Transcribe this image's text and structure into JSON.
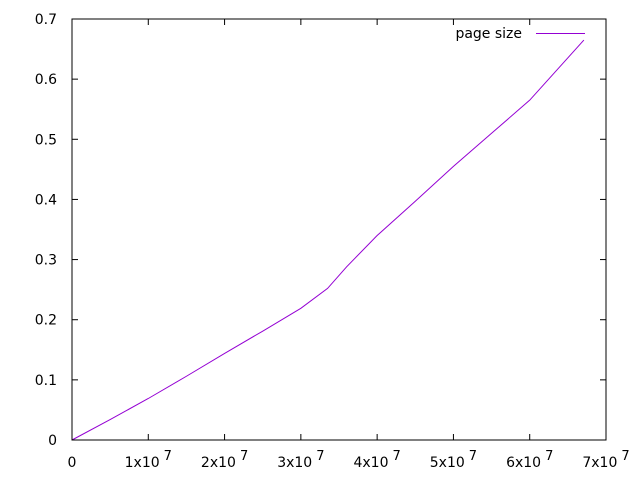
{
  "chart_data": {
    "type": "line",
    "title": "",
    "xlabel": "",
    "ylabel": "",
    "xlim": [
      0,
      70000000
    ],
    "ylim": [
      0,
      0.7
    ],
    "grid": false,
    "legend_position": "top-right",
    "x_ticks": [
      {
        "value": 0,
        "mant": "0",
        "exp": ""
      },
      {
        "value": 10000000,
        "mant": "1x10",
        "exp": "7"
      },
      {
        "value": 20000000,
        "mant": "2x10",
        "exp": "7"
      },
      {
        "value": 30000000,
        "mant": "3x10",
        "exp": "7"
      },
      {
        "value": 40000000,
        "mant": "4x10",
        "exp": "7"
      },
      {
        "value": 50000000,
        "mant": "5x10",
        "exp": "7"
      },
      {
        "value": 60000000,
        "mant": "6x10",
        "exp": "7"
      },
      {
        "value": 70000000,
        "mant": "7x10",
        "exp": "7"
      }
    ],
    "y_ticks": [
      {
        "value": 0,
        "label": "0"
      },
      {
        "value": 0.1,
        "label": "0.1"
      },
      {
        "value": 0.2,
        "label": "0.2"
      },
      {
        "value": 0.3,
        "label": "0.3"
      },
      {
        "value": 0.4,
        "label": "0.4"
      },
      {
        "value": 0.5,
        "label": "0.5"
      },
      {
        "value": 0.6,
        "label": "0.6"
      },
      {
        "value": 0.7,
        "label": "0.7"
      }
    ],
    "series": [
      {
        "name": "page size",
        "color": "#9400d3",
        "points": [
          [
            0,
            0
          ],
          [
            5000000,
            0.034
          ],
          [
            10000000,
            0.069
          ],
          [
            15000000,
            0.106
          ],
          [
            20000000,
            0.144
          ],
          [
            25000000,
            0.181
          ],
          [
            30000000,
            0.219
          ],
          [
            33500000,
            0.252
          ],
          [
            36000000,
            0.288
          ],
          [
            40000000,
            0.34
          ],
          [
            45000000,
            0.397
          ],
          [
            50000000,
            0.455
          ],
          [
            55000000,
            0.51
          ],
          [
            60000000,
            0.565
          ],
          [
            67100000,
            0.665
          ]
        ]
      }
    ]
  }
}
